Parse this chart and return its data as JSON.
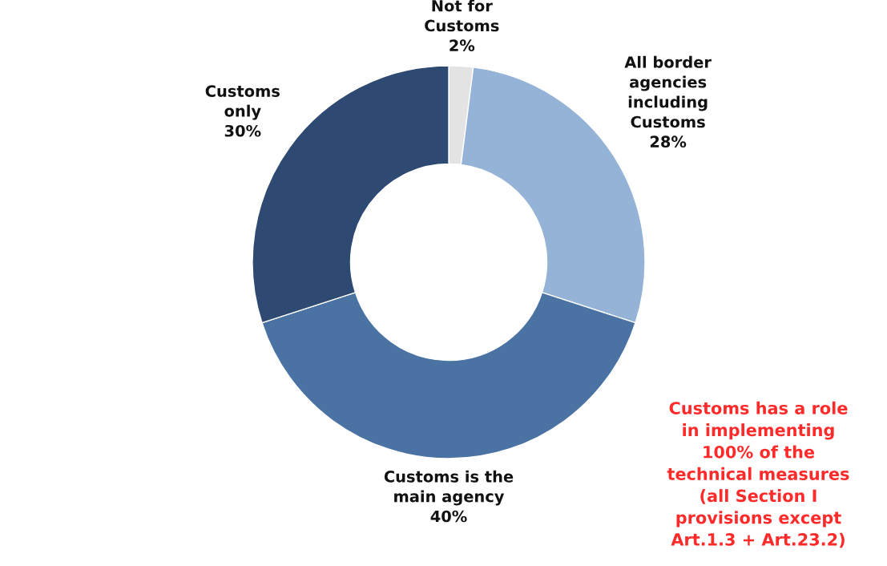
{
  "chart_data": {
    "type": "donut",
    "categories": [
      "Not for\nCustoms",
      "All border\nagencies\nincluding\nCustoms",
      "Customs is the\nmain agency",
      "Customs\nonly"
    ],
    "values": [
      2,
      28,
      40,
      30
    ],
    "value_labels": [
      "2%",
      "28%",
      "40%",
      "30%"
    ],
    "colors": [
      "#e3e3e3",
      "#95b3d7",
      "#4a72a3",
      "#2e4a72"
    ],
    "annotations": [
      "Customs has a role\nin implementing\n100% of the\ntechnical measures\n(all Section I\nprovisions except\nArt.1.3 + Art.23.2)"
    ],
    "legend": false
  }
}
